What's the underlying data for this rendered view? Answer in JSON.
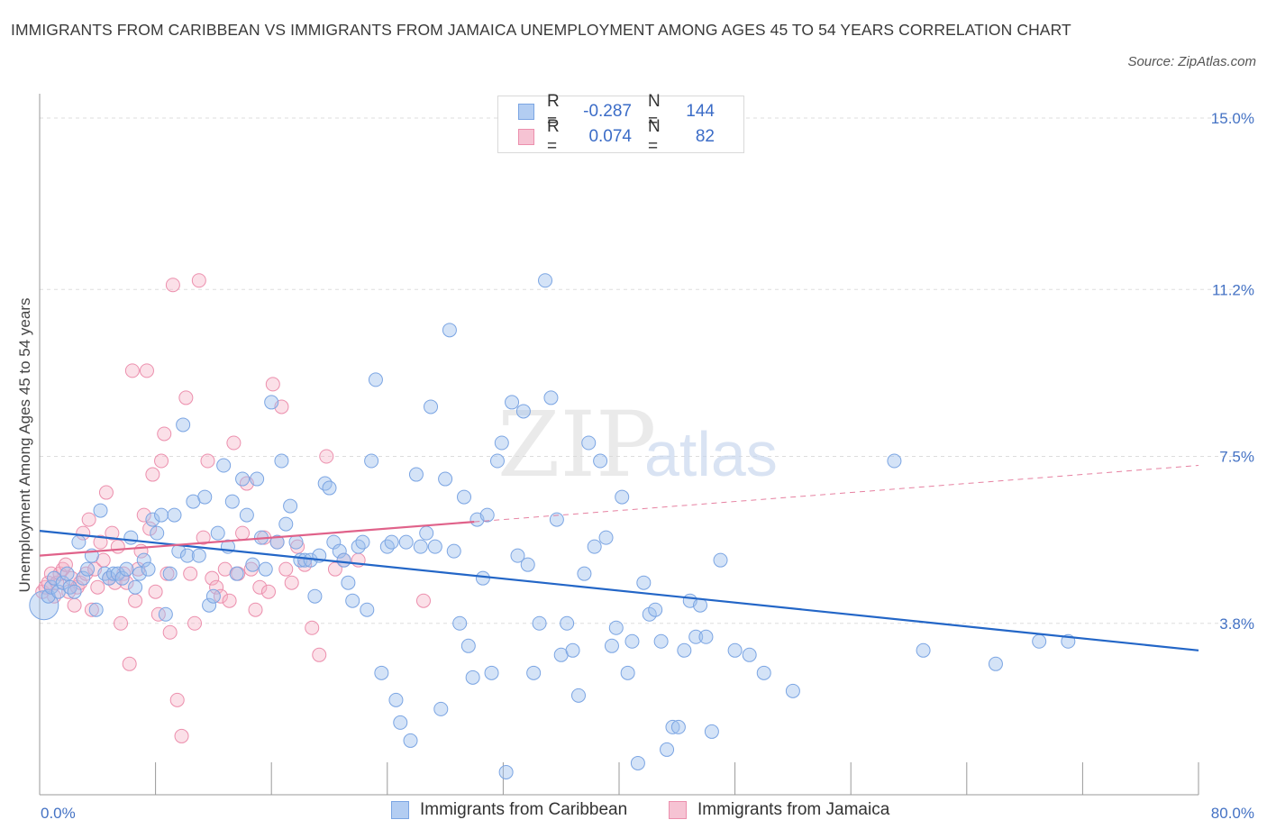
{
  "title": "IMMIGRANTS FROM CARIBBEAN VS IMMIGRANTS FROM JAMAICA UNEMPLOYMENT AMONG AGES 45 TO 54 YEARS CORRELATION CHART",
  "source": "Source: ZipAtlas.com",
  "watermark": {
    "zip": "ZIP",
    "atlas": "atlas"
  },
  "legend": {
    "rows": [
      {
        "r_label": "R =",
        "r_value": "-0.287",
        "n_label": "N =",
        "n_value": "144"
      },
      {
        "r_label": "R =",
        "r_value": "0.074",
        "n_label": "N =",
        "n_value": "82"
      }
    ]
  },
  "colors": {
    "series1": "#7ba5e3",
    "series1_fill": "rgba(160,192,238,0.45)",
    "series1_line": "#2366c7",
    "series2": "#ec8fad",
    "series2_fill": "rgba(244,178,198,0.40)",
    "series2_line": "#e0628a",
    "axis_text": "#4472c4",
    "grid": "#dddddd"
  },
  "chart_data": {
    "type": "scatter",
    "title": "IMMIGRANTS FROM CARIBBEAN VS IMMIGRANTS FROM JAMAICA UNEMPLOYMENT AMONG AGES 45 TO 54 YEARS CORRELATION CHART",
    "xlabel": "",
    "ylabel": "Unemployment Among Ages 45 to 54 years",
    "xlim": [
      0,
      80
    ],
    "ylim": [
      0,
      15.3
    ],
    "x_tick_labels": [
      "0.0%",
      "80.0%"
    ],
    "y_ticks": [
      3.8,
      7.5,
      11.2,
      15.0
    ],
    "y_tick_labels": [
      "3.8%",
      "7.5%",
      "11.2%",
      "15.0%"
    ],
    "grid": true,
    "legend_position": "top-center",
    "series": [
      {
        "name": "Immigrants from Caribbean",
        "r": -0.287,
        "n": 144,
        "trend": {
          "x0": 0,
          "y0": 5.85,
          "x1": 80,
          "y1": 3.2
        },
        "points": [
          [
            0.3,
            4.2
          ],
          [
            0.6,
            4.4
          ],
          [
            0.8,
            4.6
          ],
          [
            1.0,
            4.8
          ],
          [
            1.3,
            4.5
          ],
          [
            1.6,
            4.7
          ],
          [
            1.9,
            4.9
          ],
          [
            2.1,
            4.6
          ],
          [
            2.4,
            4.5
          ],
          [
            2.7,
            5.6
          ],
          [
            3.0,
            4.8
          ],
          [
            3.3,
            5.0
          ],
          [
            3.6,
            5.3
          ],
          [
            3.9,
            4.1
          ],
          [
            4.2,
            6.3
          ],
          [
            4.5,
            4.9
          ],
          [
            4.8,
            4.8
          ],
          [
            5.1,
            4.9
          ],
          [
            5.4,
            4.9
          ],
          [
            5.7,
            4.8
          ],
          [
            6.0,
            5.0
          ],
          [
            6.3,
            5.7
          ],
          [
            6.6,
            4.6
          ],
          [
            6.9,
            4.9
          ],
          [
            7.2,
            5.2
          ],
          [
            7.5,
            5.0
          ],
          [
            7.8,
            6.1
          ],
          [
            8.1,
            5.8
          ],
          [
            8.4,
            6.2
          ],
          [
            8.7,
            4.0
          ],
          [
            9.0,
            4.9
          ],
          [
            9.3,
            6.2
          ],
          [
            9.6,
            5.4
          ],
          [
            9.9,
            8.2
          ],
          [
            10.2,
            5.3
          ],
          [
            10.6,
            6.5
          ],
          [
            11.0,
            5.3
          ],
          [
            11.4,
            6.6
          ],
          [
            11.7,
            4.2
          ],
          [
            12.0,
            4.4
          ],
          [
            12.3,
            5.8
          ],
          [
            12.7,
            7.3
          ],
          [
            13.0,
            5.5
          ],
          [
            13.3,
            6.5
          ],
          [
            13.6,
            4.9
          ],
          [
            14.0,
            7.0
          ],
          [
            14.3,
            6.2
          ],
          [
            14.7,
            5.1
          ],
          [
            15.0,
            7.0
          ],
          [
            15.3,
            5.7
          ],
          [
            15.6,
            5.0
          ],
          [
            16.0,
            8.7
          ],
          [
            16.4,
            5.6
          ],
          [
            16.7,
            7.4
          ],
          [
            17.0,
            6.0
          ],
          [
            17.3,
            6.4
          ],
          [
            17.7,
            5.6
          ],
          [
            18.0,
            5.2
          ],
          [
            18.3,
            5.2
          ],
          [
            18.7,
            5.2
          ],
          [
            19.0,
            4.4
          ],
          [
            19.3,
            5.3
          ],
          [
            19.7,
            6.9
          ],
          [
            20.0,
            6.8
          ],
          [
            20.3,
            5.6
          ],
          [
            20.7,
            5.4
          ],
          [
            21.0,
            5.2
          ],
          [
            21.3,
            4.7
          ],
          [
            21.6,
            4.3
          ],
          [
            22.0,
            5.5
          ],
          [
            22.3,
            5.6
          ],
          [
            22.6,
            4.1
          ],
          [
            22.9,
            7.4
          ],
          [
            23.2,
            9.2
          ],
          [
            23.6,
            2.7
          ],
          [
            24.0,
            5.5
          ],
          [
            24.3,
            5.6
          ],
          [
            24.6,
            2.1
          ],
          [
            24.9,
            1.6
          ],
          [
            25.3,
            5.6
          ],
          [
            25.6,
            1.2
          ],
          [
            26.0,
            7.1
          ],
          [
            26.3,
            5.5
          ],
          [
            26.7,
            5.8
          ],
          [
            27.0,
            8.6
          ],
          [
            27.3,
            5.5
          ],
          [
            27.7,
            1.9
          ],
          [
            28.0,
            7.0
          ],
          [
            28.3,
            10.3
          ],
          [
            28.6,
            5.4
          ],
          [
            29.0,
            3.8
          ],
          [
            29.3,
            6.6
          ],
          [
            29.6,
            3.3
          ],
          [
            29.9,
            2.6
          ],
          [
            30.2,
            6.1
          ],
          [
            30.6,
            4.8
          ],
          [
            30.9,
            6.2
          ],
          [
            31.2,
            2.7
          ],
          [
            31.6,
            7.4
          ],
          [
            31.9,
            7.8
          ],
          [
            32.2,
            0.5
          ],
          [
            32.6,
            8.7
          ],
          [
            33.0,
            5.3
          ],
          [
            33.4,
            8.5
          ],
          [
            33.7,
            5.1
          ],
          [
            34.1,
            2.7
          ],
          [
            34.5,
            3.8
          ],
          [
            34.9,
            11.4
          ],
          [
            35.3,
            8.8
          ],
          [
            35.7,
            6.1
          ],
          [
            36.0,
            3.1
          ],
          [
            36.4,
            3.8
          ],
          [
            36.8,
            3.2
          ],
          [
            37.2,
            2.2
          ],
          [
            37.6,
            4.9
          ],
          [
            37.9,
            7.8
          ],
          [
            38.3,
            5.5
          ],
          [
            38.7,
            7.4
          ],
          [
            39.1,
            5.7
          ],
          [
            39.5,
            3.3
          ],
          [
            39.8,
            3.7
          ],
          [
            40.2,
            6.6
          ],
          [
            40.6,
            2.7
          ],
          [
            40.9,
            3.4
          ],
          [
            41.3,
            0.7
          ],
          [
            41.7,
            4.7
          ],
          [
            42.1,
            4.0
          ],
          [
            42.5,
            4.1
          ],
          [
            42.9,
            3.4
          ],
          [
            43.3,
            1.0
          ],
          [
            43.7,
            1.5
          ],
          [
            44.1,
            1.5
          ],
          [
            44.5,
            3.2
          ],
          [
            44.9,
            4.3
          ],
          [
            45.3,
            3.5
          ],
          [
            45.6,
            4.2
          ],
          [
            46.0,
            3.5
          ],
          [
            46.4,
            1.4
          ],
          [
            47.0,
            5.2
          ],
          [
            48.0,
            3.2
          ],
          [
            49.0,
            3.1
          ],
          [
            50.0,
            2.7
          ],
          [
            52.0,
            2.3
          ],
          [
            59.0,
            7.4
          ],
          [
            61.0,
            3.2
          ],
          [
            66.0,
            2.9
          ],
          [
            69.0,
            3.4
          ],
          [
            71.0,
            3.4
          ]
        ]
      },
      {
        "name": "Immigrants from Jamaica",
        "r": 0.074,
        "n": 82,
        "trend": {
          "x0": 0,
          "y0": 5.3,
          "x1": 80,
          "y1": 7.3,
          "solid_until": 30
        },
        "points": [
          [
            0.2,
            4.5
          ],
          [
            0.4,
            4.6
          ],
          [
            0.6,
            4.7
          ],
          [
            0.8,
            4.9
          ],
          [
            1.0,
            4.4
          ],
          [
            1.2,
            4.7
          ],
          [
            1.4,
            4.9
          ],
          [
            1.6,
            5.0
          ],
          [
            1.8,
            5.1
          ],
          [
            2.0,
            4.5
          ],
          [
            2.2,
            4.8
          ],
          [
            2.4,
            4.2
          ],
          [
            2.6,
            4.6
          ],
          [
            2.8,
            4.7
          ],
          [
            3.0,
            5.8
          ],
          [
            3.2,
            4.9
          ],
          [
            3.4,
            6.1
          ],
          [
            3.6,
            4.1
          ],
          [
            3.8,
            5.0
          ],
          [
            4.0,
            4.6
          ],
          [
            4.2,
            5.6
          ],
          [
            4.4,
            5.2
          ],
          [
            4.6,
            6.7
          ],
          [
            4.8,
            4.8
          ],
          [
            5.0,
            5.8
          ],
          [
            5.2,
            4.7
          ],
          [
            5.4,
            5.5
          ],
          [
            5.6,
            3.8
          ],
          [
            5.8,
            4.9
          ],
          [
            6.0,
            4.7
          ],
          [
            6.2,
            2.9
          ],
          [
            6.4,
            9.4
          ],
          [
            6.6,
            4.3
          ],
          [
            6.8,
            5.0
          ],
          [
            7.0,
            5.4
          ],
          [
            7.2,
            6.2
          ],
          [
            7.4,
            9.4
          ],
          [
            7.6,
            5.9
          ],
          [
            7.8,
            7.1
          ],
          [
            8.0,
            4.5
          ],
          [
            8.2,
            4.0
          ],
          [
            8.4,
            7.4
          ],
          [
            8.6,
            8.0
          ],
          [
            8.8,
            4.9
          ],
          [
            9.0,
            3.6
          ],
          [
            9.2,
            11.3
          ],
          [
            9.5,
            2.1
          ],
          [
            9.8,
            1.3
          ],
          [
            10.1,
            8.8
          ],
          [
            10.4,
            4.9
          ],
          [
            10.7,
            3.8
          ],
          [
            11.0,
            11.4
          ],
          [
            11.3,
            5.7
          ],
          [
            11.6,
            7.4
          ],
          [
            11.9,
            4.8
          ],
          [
            12.2,
            4.6
          ],
          [
            12.5,
            4.4
          ],
          [
            12.8,
            5.0
          ],
          [
            13.1,
            4.3
          ],
          [
            13.4,
            7.8
          ],
          [
            13.7,
            4.9
          ],
          [
            14.0,
            5.8
          ],
          [
            14.3,
            6.9
          ],
          [
            14.6,
            5.0
          ],
          [
            14.9,
            4.1
          ],
          [
            15.2,
            4.6
          ],
          [
            15.5,
            5.7
          ],
          [
            15.8,
            4.5
          ],
          [
            16.1,
            9.1
          ],
          [
            16.4,
            5.6
          ],
          [
            16.7,
            8.6
          ],
          [
            17.0,
            5.0
          ],
          [
            17.4,
            4.7
          ],
          [
            17.8,
            5.5
          ],
          [
            18.3,
            5.1
          ],
          [
            18.8,
            3.7
          ],
          [
            19.3,
            3.1
          ],
          [
            19.8,
            7.5
          ],
          [
            20.4,
            5.0
          ],
          [
            21.0,
            5.2
          ],
          [
            22.0,
            5.2
          ],
          [
            26.5,
            4.3
          ]
        ]
      }
    ]
  },
  "bottom_legend": [
    "Immigrants from Caribbean",
    "Immigrants from Jamaica"
  ]
}
